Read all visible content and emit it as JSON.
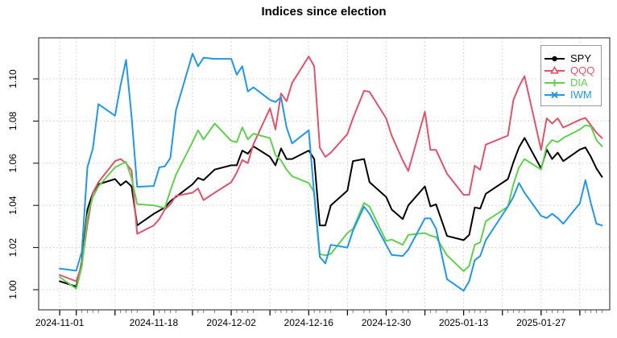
{
  "title": "Indices since election",
  "chart_data": {
    "type": "line",
    "title": "Indices since election",
    "xlabel": "",
    "ylabel": "",
    "grid": true,
    "legend_position": "top-right",
    "y_axis": {
      "ticks": [
        "1.00",
        "1.02",
        "1.04",
        "1.06",
        "1.08",
        "1.10"
      ],
      "tick_values": [
        1.0,
        1.02,
        1.04,
        1.06,
        1.08,
        1.1
      ],
      "range": [
        0.9905,
        1.1195
      ],
      "label_rotation": 90
    },
    "x_axis": {
      "labeled_ticks": [
        "2024-11-01",
        "2024-11-18",
        "2024-12-02",
        "2024-12-16",
        "2024-12-30",
        "2025-01-13",
        "2025-01-27"
      ],
      "grid_dates": [
        "2024-11-01",
        "2024-11-04",
        "2024-11-11",
        "2024-11-18",
        "2024-11-25",
        "2024-12-02",
        "2024-12-09",
        "2024-12-16",
        "2024-12-23",
        "2024-12-30",
        "2025-01-06",
        "2025-01-13",
        "2025-01-20",
        "2025-01-27",
        "2025-02-03"
      ],
      "range": [
        "2024-11-01",
        "2025-02-07"
      ]
    },
    "dates": [
      "2024-11-01",
      "2024-11-04",
      "2024-11-05",
      "2024-11-06",
      "2024-11-07",
      "2024-11-08",
      "2024-11-11",
      "2024-11-12",
      "2024-11-13",
      "2024-11-14",
      "2024-11-15",
      "2024-11-18",
      "2024-11-19",
      "2024-11-20",
      "2024-11-21",
      "2024-11-22",
      "2024-11-25",
      "2024-11-26",
      "2024-11-27",
      "2024-11-29",
      "2024-12-02",
      "2024-12-03",
      "2024-12-04",
      "2024-12-05",
      "2024-12-06",
      "2024-12-09",
      "2024-12-10",
      "2024-12-11",
      "2024-12-12",
      "2024-12-13",
      "2024-12-16",
      "2024-12-17",
      "2024-12-18",
      "2024-12-19",
      "2024-12-20",
      "2024-12-23",
      "2024-12-24",
      "2024-12-26",
      "2024-12-27",
      "2024-12-30",
      "2024-12-31",
      "2025-01-02",
      "2025-01-03",
      "2025-01-06",
      "2025-01-07",
      "2025-01-08",
      "2025-01-10",
      "2025-01-13",
      "2025-01-14",
      "2025-01-15",
      "2025-01-16",
      "2025-01-17",
      "2025-01-21",
      "2025-01-22",
      "2025-01-23",
      "2025-01-24",
      "2025-01-27",
      "2025-01-28",
      "2025-01-29",
      "2025-01-30",
      "2025-01-31",
      "2025-02-03",
      "2025-02-04",
      "2025-02-05",
      "2025-02-06",
      "2025-02-07"
    ],
    "series": [
      {
        "name": "SPY",
        "color": "#000000",
        "marker": "circle",
        "values": [
          1.004,
          1.0015,
          1.013,
          1.038,
          1.046,
          1.05,
          1.0525,
          1.0495,
          1.0515,
          1.049,
          1.0305,
          1.036,
          1.0375,
          1.039,
          1.042,
          1.044,
          1.05,
          1.053,
          1.052,
          1.057,
          1.059,
          1.059,
          1.066,
          1.0645,
          1.068,
          1.063,
          1.059,
          1.067,
          1.062,
          1.062,
          1.066,
          1.062,
          1.0305,
          1.0305,
          1.04,
          1.047,
          1.061,
          1.062,
          1.051,
          1.044,
          1.038,
          1.0335,
          1.04,
          1.049,
          1.0395,
          1.0405,
          1.0255,
          1.0235,
          1.026,
          1.039,
          1.0385,
          1.0455,
          1.0525,
          1.0605,
          1.0675,
          1.072,
          1.0575,
          1.0665,
          1.062,
          1.065,
          1.061,
          1.0665,
          1.0675,
          1.063,
          1.0575,
          1.0535
        ]
      },
      {
        "name": "QQQ",
        "color": "#df536b",
        "marker": "triangle",
        "values": [
          1.007,
          1.004,
          1.012,
          1.031,
          1.046,
          1.051,
          1.061,
          1.062,
          1.06,
          1.0565,
          1.0265,
          1.0305,
          1.0335,
          1.038,
          1.0405,
          1.0445,
          1.046,
          1.048,
          1.0425,
          1.046,
          1.051,
          1.0555,
          1.0615,
          1.06,
          1.069,
          1.086,
          1.076,
          1.0931,
          1.0894,
          1.098,
          1.1106,
          1.106,
          1.0675,
          1.063,
          1.065,
          1.0738,
          1.0813,
          1.0944,
          1.0938,
          1.0813,
          1.0731,
          1.0613,
          1.0563,
          1.0844,
          1.0663,
          1.0663,
          1.055,
          1.045,
          1.045,
          1.0588,
          1.0569,
          1.0688,
          1.0731,
          1.09,
          1.0963,
          1.1013,
          1.0663,
          1.0813,
          1.0788,
          1.0813,
          1.0769,
          1.0806,
          1.0815,
          1.078,
          1.0745,
          1.0719
        ]
      },
      {
        "name": "DIA",
        "color": "#61d04f",
        "marker": "plus",
        "values": [
          1.006,
          1.0005,
          1.011,
          1.035,
          1.044,
          1.049,
          1.058,
          1.0594,
          1.0606,
          1.0529,
          1.0406,
          1.04,
          1.0394,
          1.0388,
          1.047,
          1.0545,
          1.07,
          1.0756,
          1.0713,
          1.0788,
          1.0706,
          1.07,
          1.077,
          1.0713,
          1.074,
          1.0719,
          1.0638,
          1.0613,
          1.057,
          1.0538,
          1.0506,
          1.0463,
          1.0169,
          1.0163,
          1.017,
          1.0269,
          1.0288,
          1.0412,
          1.0394,
          1.0231,
          1.0238,
          1.0213,
          1.026,
          1.0269,
          1.0256,
          1.025,
          1.0163,
          1.0088,
          1.0113,
          1.0213,
          1.0225,
          1.0325,
          1.0394,
          1.05,
          1.058,
          1.062,
          1.057,
          1.068,
          1.071,
          1.07,
          1.072,
          1.076,
          1.078,
          1.0775,
          1.071,
          1.068
        ]
      },
      {
        "name": "IWM",
        "color": "#2297e6",
        "marker": "x",
        "values": [
          1.01,
          1.009,
          1.018,
          1.058,
          1.067,
          1.088,
          1.0825,
          1.097,
          1.109,
          1.082,
          1.0488,
          1.0492,
          1.058,
          1.0585,
          1.0625,
          1.085,
          1.112,
          1.106,
          1.11,
          1.1095,
          1.1095,
          1.102,
          1.106,
          1.094,
          1.096,
          1.09,
          1.089,
          1.0913,
          1.077,
          1.0694,
          1.0756,
          1.045,
          1.0156,
          1.0125,
          1.0213,
          1.02,
          1.028,
          1.0394,
          1.036,
          1.0213,
          1.0165,
          1.016,
          1.019,
          1.0338,
          1.0338,
          1.029,
          1.005,
          0.9995,
          1.004,
          1.014,
          1.016,
          1.0235,
          1.0395,
          1.044,
          1.0506,
          1.046,
          1.035,
          1.034,
          1.036,
          1.034,
          1.0313,
          1.041,
          1.052,
          1.041,
          1.0313,
          1.0305
        ]
      }
    ]
  },
  "colors": {
    "background": "#ffffff",
    "plot_border": "#444444",
    "gridline": "#cccccc",
    "tick_major": "#000000",
    "tick_minor": "#808080",
    "legend_border": "#999999"
  }
}
